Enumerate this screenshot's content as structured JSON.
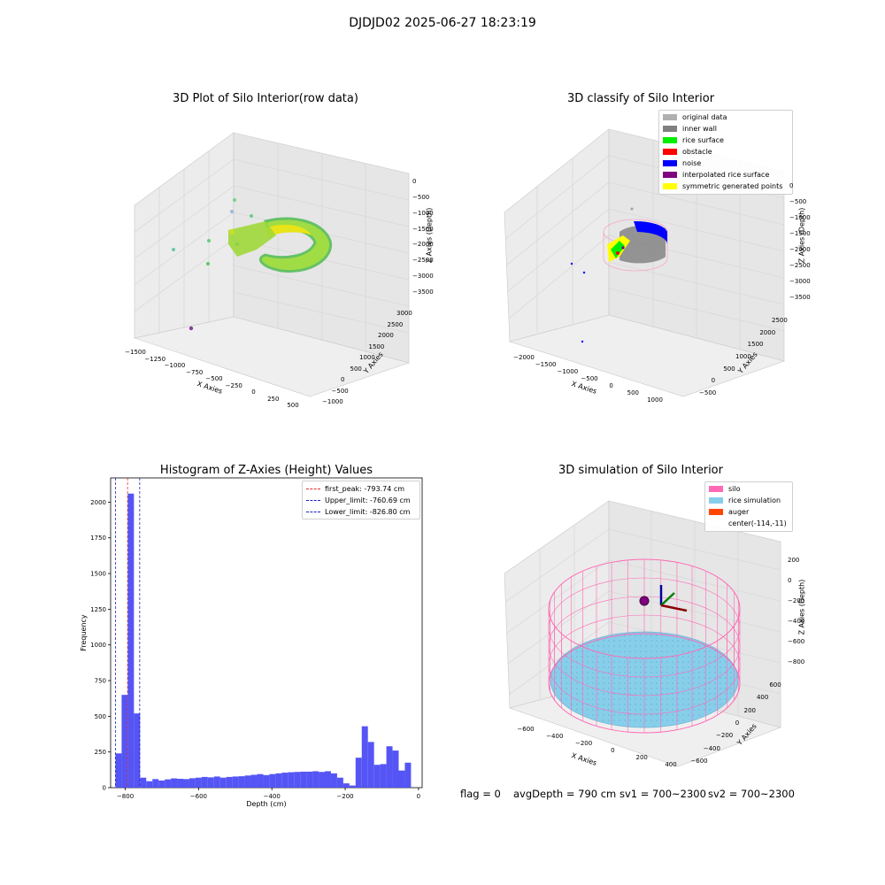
{
  "figure": {
    "suptitle": "DJDJD02 2025-06-27 18:23:19",
    "footer": {
      "flag": "flag = 0",
      "avg_depth": "avgDepth = 790 cm",
      "sv1": "sv1 = 700~2300",
      "sv2": "sv2 = 700~2300"
    }
  },
  "colors": {
    "hist_bar": "#5050f5",
    "peak_line": "#e03030",
    "limit_line": "#2020c0",
    "silo": "#ff69b4",
    "rice_simulation": "#87ceeb",
    "auger": "#ff4500",
    "original_data": "#b0b0b0",
    "inner_wall": "#808080",
    "rice_surface": "#00ee00",
    "obstacle": "#ff0000",
    "noise": "#0000ff",
    "interpolated": "#800080",
    "symmetric": "#ffff00"
  },
  "chart_data": [
    {
      "type": "scatter",
      "projection": "3d",
      "title": "3D Plot of Silo Interior(row data)",
      "xlabel": "X Axies",
      "ylabel": "Y Axies",
      "zlabel": "Z Axies (Depth)",
      "xticks": [
        "-1500",
        "-1250",
        "-1000",
        "-750",
        "-500",
        "-250",
        "0",
        "250",
        "500"
      ],
      "yticks": [
        "-1000",
        "-500",
        "0",
        "500",
        "1000",
        "1500",
        "2000",
        "2500",
        "3000"
      ],
      "zticks": [
        "0",
        "-500",
        "-1000",
        "-1500",
        "-2000",
        "-2500",
        "-3000",
        "-3500"
      ],
      "xlim": [
        -1500,
        500
      ],
      "ylim": [
        -1000,
        3000
      ],
      "zlim": [
        -3500,
        0
      ],
      "colormap": "viridis"
    },
    {
      "type": "scatter",
      "projection": "3d",
      "title": "3D classify of Silo Interior",
      "xlabel": "X Axies",
      "ylabel": "Y Axies",
      "zlabel": "Z Axies (Depth)",
      "xticks": [
        "-2000",
        "-1500",
        "-1000",
        "-500",
        "0",
        "500",
        "1000"
      ],
      "yticks": [
        "-500",
        "0",
        "500",
        "1000",
        "1500",
        "2000",
        "2500"
      ],
      "zticks": [
        "0",
        "-500",
        "-1000",
        "-1500",
        "-2000",
        "-2500",
        "-3000",
        "-3500"
      ],
      "xlim": [
        -2000,
        1000
      ],
      "ylim": [
        -500,
        2500
      ],
      "zlim": [
        -3500,
        0
      ],
      "legend_position": "top-right",
      "legend": [
        {
          "label": "original data",
          "color": "#b0b0b0"
        },
        {
          "label": "inner wall",
          "color": "#808080"
        },
        {
          "label": "rice surface",
          "color": "#00ee00"
        },
        {
          "label": "obstacle",
          "color": "#ff0000"
        },
        {
          "label": "noise",
          "color": "#0000ff"
        },
        {
          "label": "interpolated rice surface",
          "color": "#800080"
        },
        {
          "label": "symmetric generated points",
          "color": "#ffff00"
        }
      ]
    },
    {
      "type": "bar",
      "title": "Histogram of Z-Axies (Height) Values",
      "xlabel": "Depth (cm)",
      "ylabel": "Frequency",
      "xlim": [
        -840,
        10
      ],
      "ylim": [
        0,
        2170
      ],
      "xticks": [
        -800,
        -600,
        -400,
        -200,
        0
      ],
      "yticks": [
        0,
        250,
        500,
        750,
        1000,
        1250,
        1500,
        1750,
        2000
      ],
      "bin_start": -826.8,
      "bin_width": 16.8,
      "values": [
        240,
        650,
        2060,
        520,
        70,
        45,
        60,
        50,
        58,
        65,
        62,
        60,
        66,
        70,
        75,
        72,
        78,
        70,
        75,
        78,
        80,
        85,
        90,
        95,
        88,
        95,
        100,
        105,
        108,
        110,
        112,
        112,
        115,
        110,
        115,
        100,
        70,
        30,
        15,
        210,
        430,
        320,
        160,
        165,
        290,
        260,
        120,
        175
      ],
      "vlines": [
        {
          "label": "first_peak: -793.74 cm",
          "x": -793.74,
          "color": "#e03030"
        },
        {
          "label": "Upper_limit: -760.69 cm",
          "x": -760.69,
          "color": "#2020c0"
        },
        {
          "label": "Lower_limit: -826.80 cm",
          "x": -826.8,
          "color": "#2020c0"
        }
      ],
      "legend_position": "top-right"
    },
    {
      "type": "scatter",
      "projection": "3d",
      "title": "3D simulation of Silo Interior",
      "xlabel": "X Axies",
      "ylabel": "Y Axies",
      "zlabel": "Z Axies (Depth)",
      "xticks": [
        "-600",
        "-400",
        "-200",
        "0",
        "200",
        "400"
      ],
      "yticks": [
        "600",
        "400",
        "200",
        "0",
        "-200",
        "-400",
        "-600"
      ],
      "zticks": [
        "200",
        "0",
        "-200",
        "-400",
        "-600",
        "-800"
      ],
      "legend_position": "top-right",
      "legend": [
        {
          "label": "silo",
          "color": "#ff69b4"
        },
        {
          "label": "rice simulation",
          "color": "#87ceeb"
        },
        {
          "label": "auger",
          "color": "#ff4500"
        },
        {
          "label": "center(-114,-11)",
          "color": ""
        }
      ]
    }
  ]
}
